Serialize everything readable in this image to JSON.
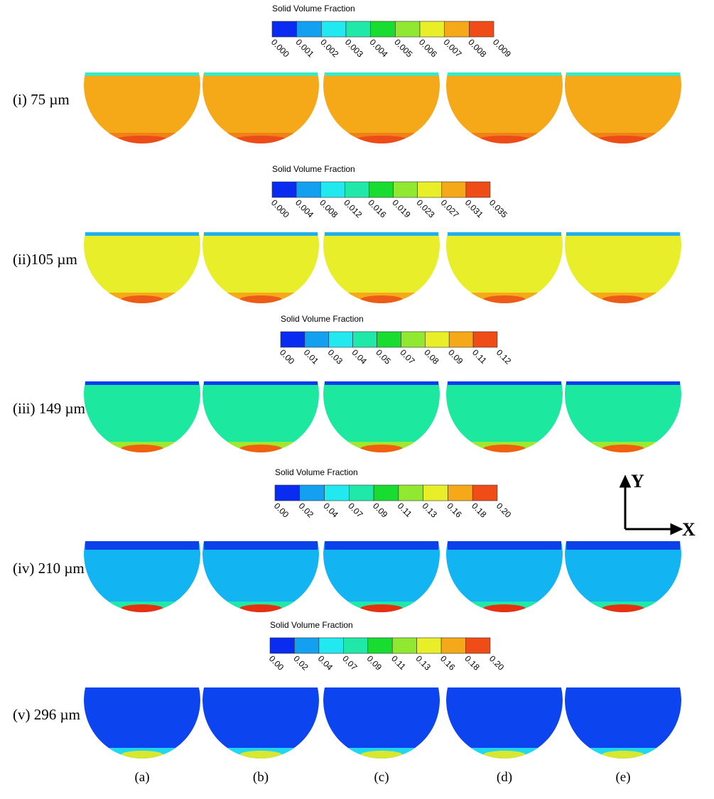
{
  "rows": [
    {
      "label": "(i) 75 µm",
      "colorbar": {
        "title": "Solid Volume Fraction",
        "ticks": [
          "0.000",
          "0.001",
          "0.002",
          "0.003",
          "0.004",
          "0.005",
          "0.006",
          "0.007",
          "0.008",
          "0.009"
        ]
      }
    },
    {
      "label": "(ii)105 µm",
      "colorbar": {
        "title": "Solid Volume Fraction",
        "ticks": [
          "0.000",
          "0.004",
          "0.008",
          "0.012",
          "0.016",
          "0.019",
          "0.023",
          "0.027",
          "0.031",
          "0.035"
        ]
      }
    },
    {
      "label": "(iii) 149 µm",
      "colorbar": {
        "title": "Solid Volume Fraction",
        "ticks": [
          "0.00",
          "0.01",
          "0.03",
          "0.04",
          "0.05",
          "0.07",
          "0.08",
          "0.09",
          "0.11",
          "0.12"
        ]
      }
    },
    {
      "label": "(iv) 210 µm",
      "colorbar": {
        "title": "Solid Volume Fraction",
        "ticks": [
          "0.00",
          "0.02",
          "0.04",
          "0.07",
          "0.09",
          "0.11",
          "0.13",
          "0.16",
          "0.18",
          "0.20"
        ]
      }
    },
    {
      "label": "(v) 296 µm",
      "colorbar": {
        "title": "Solid Volume Fraction",
        "ticks": [
          "0.00",
          "0.02",
          "0.04",
          "0.07",
          "0.09",
          "0.11",
          "0.13",
          "0.16",
          "0.18",
          "0.20"
        ]
      }
    }
  ],
  "columns": [
    "(a)",
    "(b)",
    "(c)",
    "(d)",
    "(e)"
  ],
  "axes": {
    "y": "Y",
    "x": "X"
  }
}
